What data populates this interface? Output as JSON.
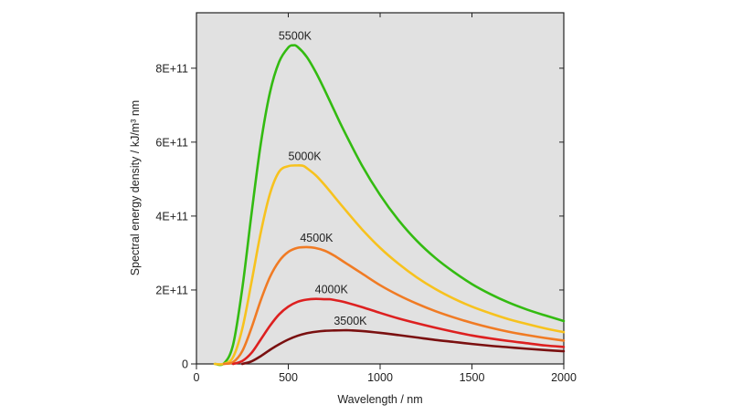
{
  "chart_data": {
    "type": "line",
    "xlabel": "Wavelength / nm",
    "ylabel": "Spectral energy density / kJ/m³ nm",
    "xlim": [
      0,
      2000
    ],
    "ylim": [
      0,
      950000000000.0
    ],
    "xticks": [
      0,
      500,
      1000,
      1500,
      2000
    ],
    "xtick_labels": [
      "0",
      "500",
      "1000",
      "1500",
      "2000"
    ],
    "yticks": [
      0,
      200000000000.0,
      400000000000.0,
      600000000000.0,
      800000000000.0
    ],
    "ytick_labels": [
      "0",
      "2E+11",
      "4E+11",
      "6E+11",
      "8E+11"
    ],
    "grid": false,
    "legend": "none",
    "plot_background": "#e1e1e1",
    "series": [
      {
        "name": "5500K",
        "color": "#33bb11",
        "x": [
          100,
          150,
          200,
          250,
          300,
          350,
          400,
          450,
          500,
          527,
          550,
          600,
          650,
          700,
          750,
          800,
          900,
          1000,
          1100,
          1200,
          1300,
          1400,
          1500,
          1600,
          1700,
          1800,
          1900,
          2000
        ],
        "y": [
          0,
          1500000000.0,
          53000000000.0,
          206000000000.0,
          407000000000.0,
          595000000000.0,
          734000000000.0,
          817000000000.0,
          856000000000.0,
          862000000000.0,
          858000000000.0,
          831000000000.0,
          789000000000.0,
          739000000000.0,
          686000000000.0,
          634000000000.0,
          538000000000.0,
          457000000000.0,
          389000000000.0,
          333000000000.0,
          287000000000.0,
          249000000000.0,
          216000000000.0,
          189000000000.0,
          166000000000.0,
          147000000000.0,
          131000000000.0,
          116000000000.0
        ]
      },
      {
        "name": "5000K",
        "color": "#f7c21e",
        "x": [
          100,
          150,
          200,
          250,
          300,
          350,
          400,
          450,
          500,
          550,
          580,
          600,
          650,
          700,
          750,
          800,
          900,
          1000,
          1100,
          1200,
          1300,
          1400,
          1500,
          1600,
          1700,
          1800,
          1900,
          2000
        ],
        "y": [
          0,
          300000000.0,
          19000000000.0,
          96000000000.0,
          222000000000.0,
          355000000000.0,
          460000000000.0,
          520000000000.0,
          535000000000.0,
          537000000000.0,
          536000000000.0,
          530000000000.0,
          510000000000.0,
          483000000000.0,
          453000000000.0,
          423000000000.0,
          365000000000.0,
          314000000000.0,
          271000000000.0,
          234000000000.0,
          203000000000.0,
          177000000000.0,
          155000000000.0,
          137000000000.0,
          121000000000.0,
          108000000000.0,
          96000000000.0,
          86000000000.0
        ]
      },
      {
        "name": "4500K",
        "color": "#f07b24",
        "x": [
          150,
          200,
          250,
          300,
          350,
          400,
          450,
          500,
          550,
          600,
          644,
          700,
          750,
          800,
          900,
          1000,
          1100,
          1200,
          1300,
          1400,
          1500,
          1600,
          1700,
          1800,
          1900,
          2000
        ],
        "y": [
          0,
          5000000000.0,
          35000000000.0,
          98000000000.0,
          172000000000.0,
          235000000000.0,
          278000000000.0,
          303000000000.0,
          314000000000.0,
          316000000000.0,
          314000000000.0,
          306000000000.0,
          293000000000.0,
          277000000000.0,
          245000000000.0,
          213000000000.0,
          186000000000.0,
          163000000000.0,
          143000000000.0,
          126000000000.0,
          111000000000.0,
          98000000000.0,
          87000000000.0,
          78000000000.0,
          70000000000.0,
          63000000000.0
        ]
      },
      {
        "name": "4000K",
        "color": "#dd2020",
        "x": [
          200,
          250,
          300,
          350,
          400,
          450,
          500,
          550,
          600,
          650,
          700,
          725,
          750,
          800,
          900,
          1000,
          1100,
          1200,
          1300,
          1400,
          1500,
          1600,
          1700,
          1800,
          1900,
          2000
        ],
        "y": [
          0,
          8000000000.0,
          30000000000.0,
          66000000000.0,
          103000000000.0,
          134000000000.0,
          155000000000.0,
          168000000000.0,
          174000000000.0,
          176000000000.0,
          175000000000.0,
          175000000000.0,
          173000000000.0,
          168000000000.0,
          154000000000.0,
          138000000000.0,
          123000000000.0,
          110000000000.0,
          98000000000.0,
          87000000000.0,
          77000000000.0,
          69000000000.0,
          62000000000.0,
          56000000000.0,
          50000000000.0,
          46000000000.0
        ]
      },
      {
        "name": "3500K",
        "color": "#7a1010",
        "x": [
          250,
          300,
          350,
          400,
          450,
          500,
          550,
          600,
          650,
          700,
          750,
          800,
          828,
          850,
          900,
          1000,
          1100,
          1200,
          1300,
          1400,
          1500,
          1600,
          1700,
          1800,
          1900,
          2000
        ],
        "y": [
          0,
          7000000000.0,
          21000000000.0,
          38000000000.0,
          53000000000.0,
          66000000000.0,
          76000000000.0,
          83000000000.0,
          87000000000.0,
          89500000000.0,
          90500000000.0,
          91000000000.0,
          91000000000.0,
          90500000000.0,
          89000000000.0,
          84000000000.0,
          78000000000.0,
          71500000000.0,
          65000000000.0,
          59500000000.0,
          54000000000.0,
          49000000000.0,
          45000000000.0,
          41000000000.0,
          37500000000.0,
          34500000000.0
        ]
      }
    ],
    "annotations": [
      {
        "text": "5500K",
        "x": 527,
        "y": 862000000000.0,
        "color": "#33bb11"
      },
      {
        "text": "5000K",
        "x": 580,
        "y": 537000000000.0,
        "color": "#f7c21e"
      },
      {
        "text": "4500K",
        "x": 644,
        "y": 316000000000.0,
        "color": "#f07b24"
      },
      {
        "text": "4000K",
        "x": 725,
        "y": 176000000000.0,
        "color": "#dd2020"
      },
      {
        "text": "3500K",
        "x": 828,
        "y": 91000000000.0,
        "color": "#7a1010"
      }
    ]
  }
}
